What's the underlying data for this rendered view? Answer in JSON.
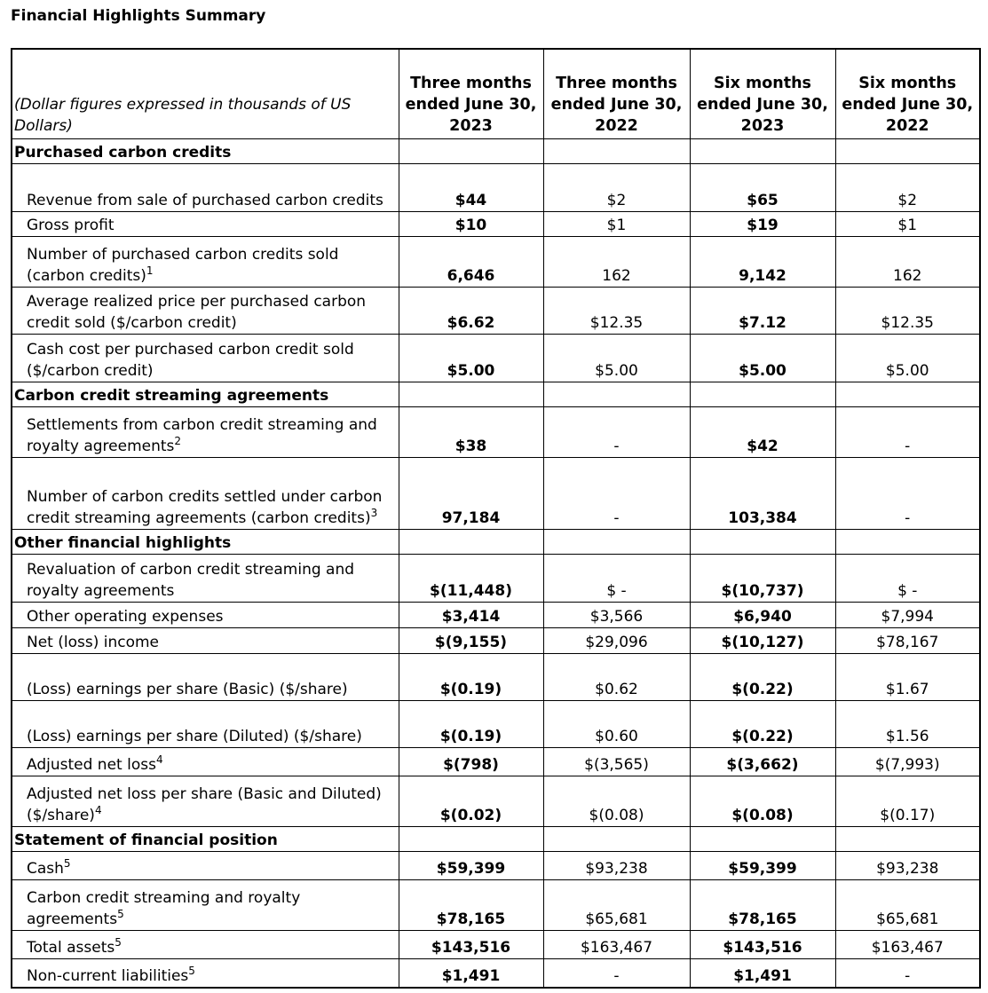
{
  "title": "Financial Highlights Summary",
  "header": {
    "note": "(Dollar figures expressed in thousands of US Dollars)",
    "columns": [
      "Three months ended June 30, 2023",
      "Three months ended June 30, 2022",
      "Six months ended June 30, 2023",
      "Six months ended June 30, 2022"
    ]
  },
  "sections": [
    {
      "title": "Purchased carbon credits",
      "rows": [
        {
          "label": "Revenue from sale of purchased carbon credits",
          "values": [
            "$44",
            "$2",
            "$65",
            "$2"
          ]
        },
        {
          "label": "Gross profit",
          "values": [
            "$10",
            "$1",
            "$19",
            "$1"
          ]
        },
        {
          "label": "Number of purchased carbon credits sold (carbon credits)",
          "note": "1",
          "values": [
            "6,646",
            "162",
            "9,142",
            "162"
          ]
        },
        {
          "label": "Average realized price per purchased carbon credit sold ($/carbon credit)",
          "values": [
            "$6.62",
            "$12.35",
            "$7.12",
            "$12.35"
          ]
        },
        {
          "label": "Cash cost per purchased carbon credit sold ($/carbon credit)",
          "values": [
            "$5.00",
            "$5.00",
            "$5.00",
            "$5.00"
          ]
        }
      ]
    },
    {
      "title": "Carbon credit streaming agreements",
      "rows": [
        {
          "label": "Settlements from carbon credit streaming and royalty agreements",
          "note": "2",
          "values": [
            "$38",
            "-",
            "$42",
            "-"
          ]
        },
        {
          "label": "Number of carbon credits settled under carbon credit streaming agreements (carbon credits)",
          "note": "3",
          "values": [
            "97,184",
            "-",
            "103,384",
            "-"
          ]
        }
      ]
    },
    {
      "title": "Other financial highlights",
      "rows": [
        {
          "label": "Revaluation of carbon credit streaming and royalty agreements",
          "values": [
            "$(11,448)",
            "$ -",
            "$(10,737)",
            "$ -"
          ]
        },
        {
          "label": "Other operating expenses",
          "values": [
            "$3,414",
            "$3,566",
            "$6,940",
            "$7,994"
          ]
        },
        {
          "label": "Net (loss) income",
          "values": [
            "$(9,155)",
            "$29,096",
            "$(10,127)",
            "$78,167"
          ]
        },
        {
          "label": "(Loss) earnings per share (Basic) ($/share)",
          "values": [
            "$(0.19)",
            "$0.62",
            "$(0.22)",
            "$1.67"
          ]
        },
        {
          "label": "(Loss) earnings per share (Diluted) ($/share)",
          "values": [
            "$(0.19)",
            "$0.60",
            "$(0.22)",
            "$1.56"
          ]
        },
        {
          "label": "Adjusted net loss",
          "note": "4",
          "values": [
            "$(798)",
            "$(3,565)",
            "$(3,662)",
            "$(7,993)"
          ]
        },
        {
          "label": "Adjusted net loss per share (Basic and Diluted) ($/share)",
          "note": "4",
          "values": [
            "$(0.02)",
            "$(0.08)",
            "$(0.08)",
            "$(0.17)"
          ]
        }
      ]
    },
    {
      "title": "Statement of financial position",
      "rows": [
        {
          "label": "Cash",
          "note": "5",
          "values": [
            "$59,399",
            "$93,238",
            "$59,399",
            "$93,238"
          ]
        },
        {
          "label": "Carbon credit streaming and royalty agreements",
          "note": "5",
          "values": [
            "$78,165",
            "$65,681",
            "$78,165",
            "$65,681"
          ]
        },
        {
          "label": "Total assets",
          "note": "5",
          "values": [
            "$143,516",
            "$163,467",
            "$143,516",
            "$163,467"
          ]
        },
        {
          "label": "Non-current liabilities",
          "note": "5",
          "values": [
            "$1,491",
            "-",
            "$1,491",
            "-"
          ]
        }
      ]
    }
  ]
}
